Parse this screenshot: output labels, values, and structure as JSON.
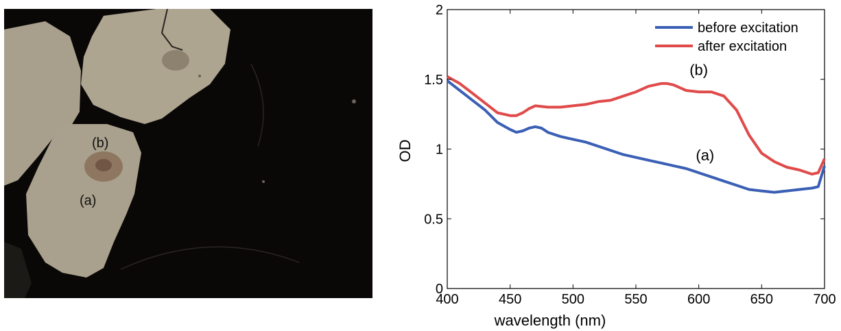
{
  "photo": {
    "label_a": "(a)",
    "label_b": "(b)"
  },
  "chart_data": {
    "type": "line",
    "xlabel": "wavelength (nm)",
    "ylabel": "OD",
    "xlim": [
      400,
      700
    ],
    "ylim": [
      0,
      2
    ],
    "x_ticks": [
      400,
      450,
      500,
      550,
      600,
      650,
      700
    ],
    "y_ticks": [
      0,
      0.5,
      1,
      1.5,
      2
    ],
    "y_tick_labels": [
      "0",
      "0.5",
      "1",
      "1.5",
      "2"
    ],
    "grid": false,
    "legend_position": "top-right",
    "series": [
      {
        "name": "before excitation",
        "color": "#3a5fb5",
        "x": [
          400,
          410,
          420,
          430,
          440,
          450,
          455,
          460,
          465,
          470,
          475,
          480,
          490,
          500,
          510,
          520,
          530,
          540,
          550,
          560,
          570,
          580,
          590,
          600,
          610,
          620,
          630,
          640,
          650,
          660,
          670,
          680,
          690,
          695,
          700
        ],
        "y": [
          1.49,
          1.42,
          1.35,
          1.28,
          1.19,
          1.14,
          1.12,
          1.13,
          1.15,
          1.16,
          1.15,
          1.12,
          1.09,
          1.07,
          1.05,
          1.02,
          0.99,
          0.96,
          0.94,
          0.92,
          0.9,
          0.88,
          0.86,
          0.83,
          0.8,
          0.77,
          0.74,
          0.71,
          0.7,
          0.69,
          0.7,
          0.71,
          0.72,
          0.73,
          0.88
        ]
      },
      {
        "name": "after excitation",
        "color": "#e04a4a",
        "x": [
          400,
          410,
          420,
          430,
          440,
          450,
          455,
          460,
          465,
          470,
          480,
          490,
          500,
          510,
          520,
          530,
          540,
          550,
          560,
          570,
          575,
          580,
          590,
          600,
          610,
          620,
          630,
          640,
          650,
          660,
          670,
          680,
          690,
          695,
          700
        ],
        "y": [
          1.52,
          1.47,
          1.4,
          1.33,
          1.26,
          1.24,
          1.24,
          1.26,
          1.29,
          1.31,
          1.3,
          1.3,
          1.31,
          1.32,
          1.34,
          1.35,
          1.38,
          1.41,
          1.45,
          1.47,
          1.47,
          1.46,
          1.42,
          1.41,
          1.41,
          1.38,
          1.28,
          1.1,
          0.97,
          0.91,
          0.87,
          0.85,
          0.82,
          0.83,
          0.93
        ]
      }
    ],
    "annotations": [
      {
        "text": "(b)",
        "x": 600,
        "y": 1.53
      },
      {
        "text": "(a)",
        "x": 605,
        "y": 0.92
      }
    ]
  }
}
